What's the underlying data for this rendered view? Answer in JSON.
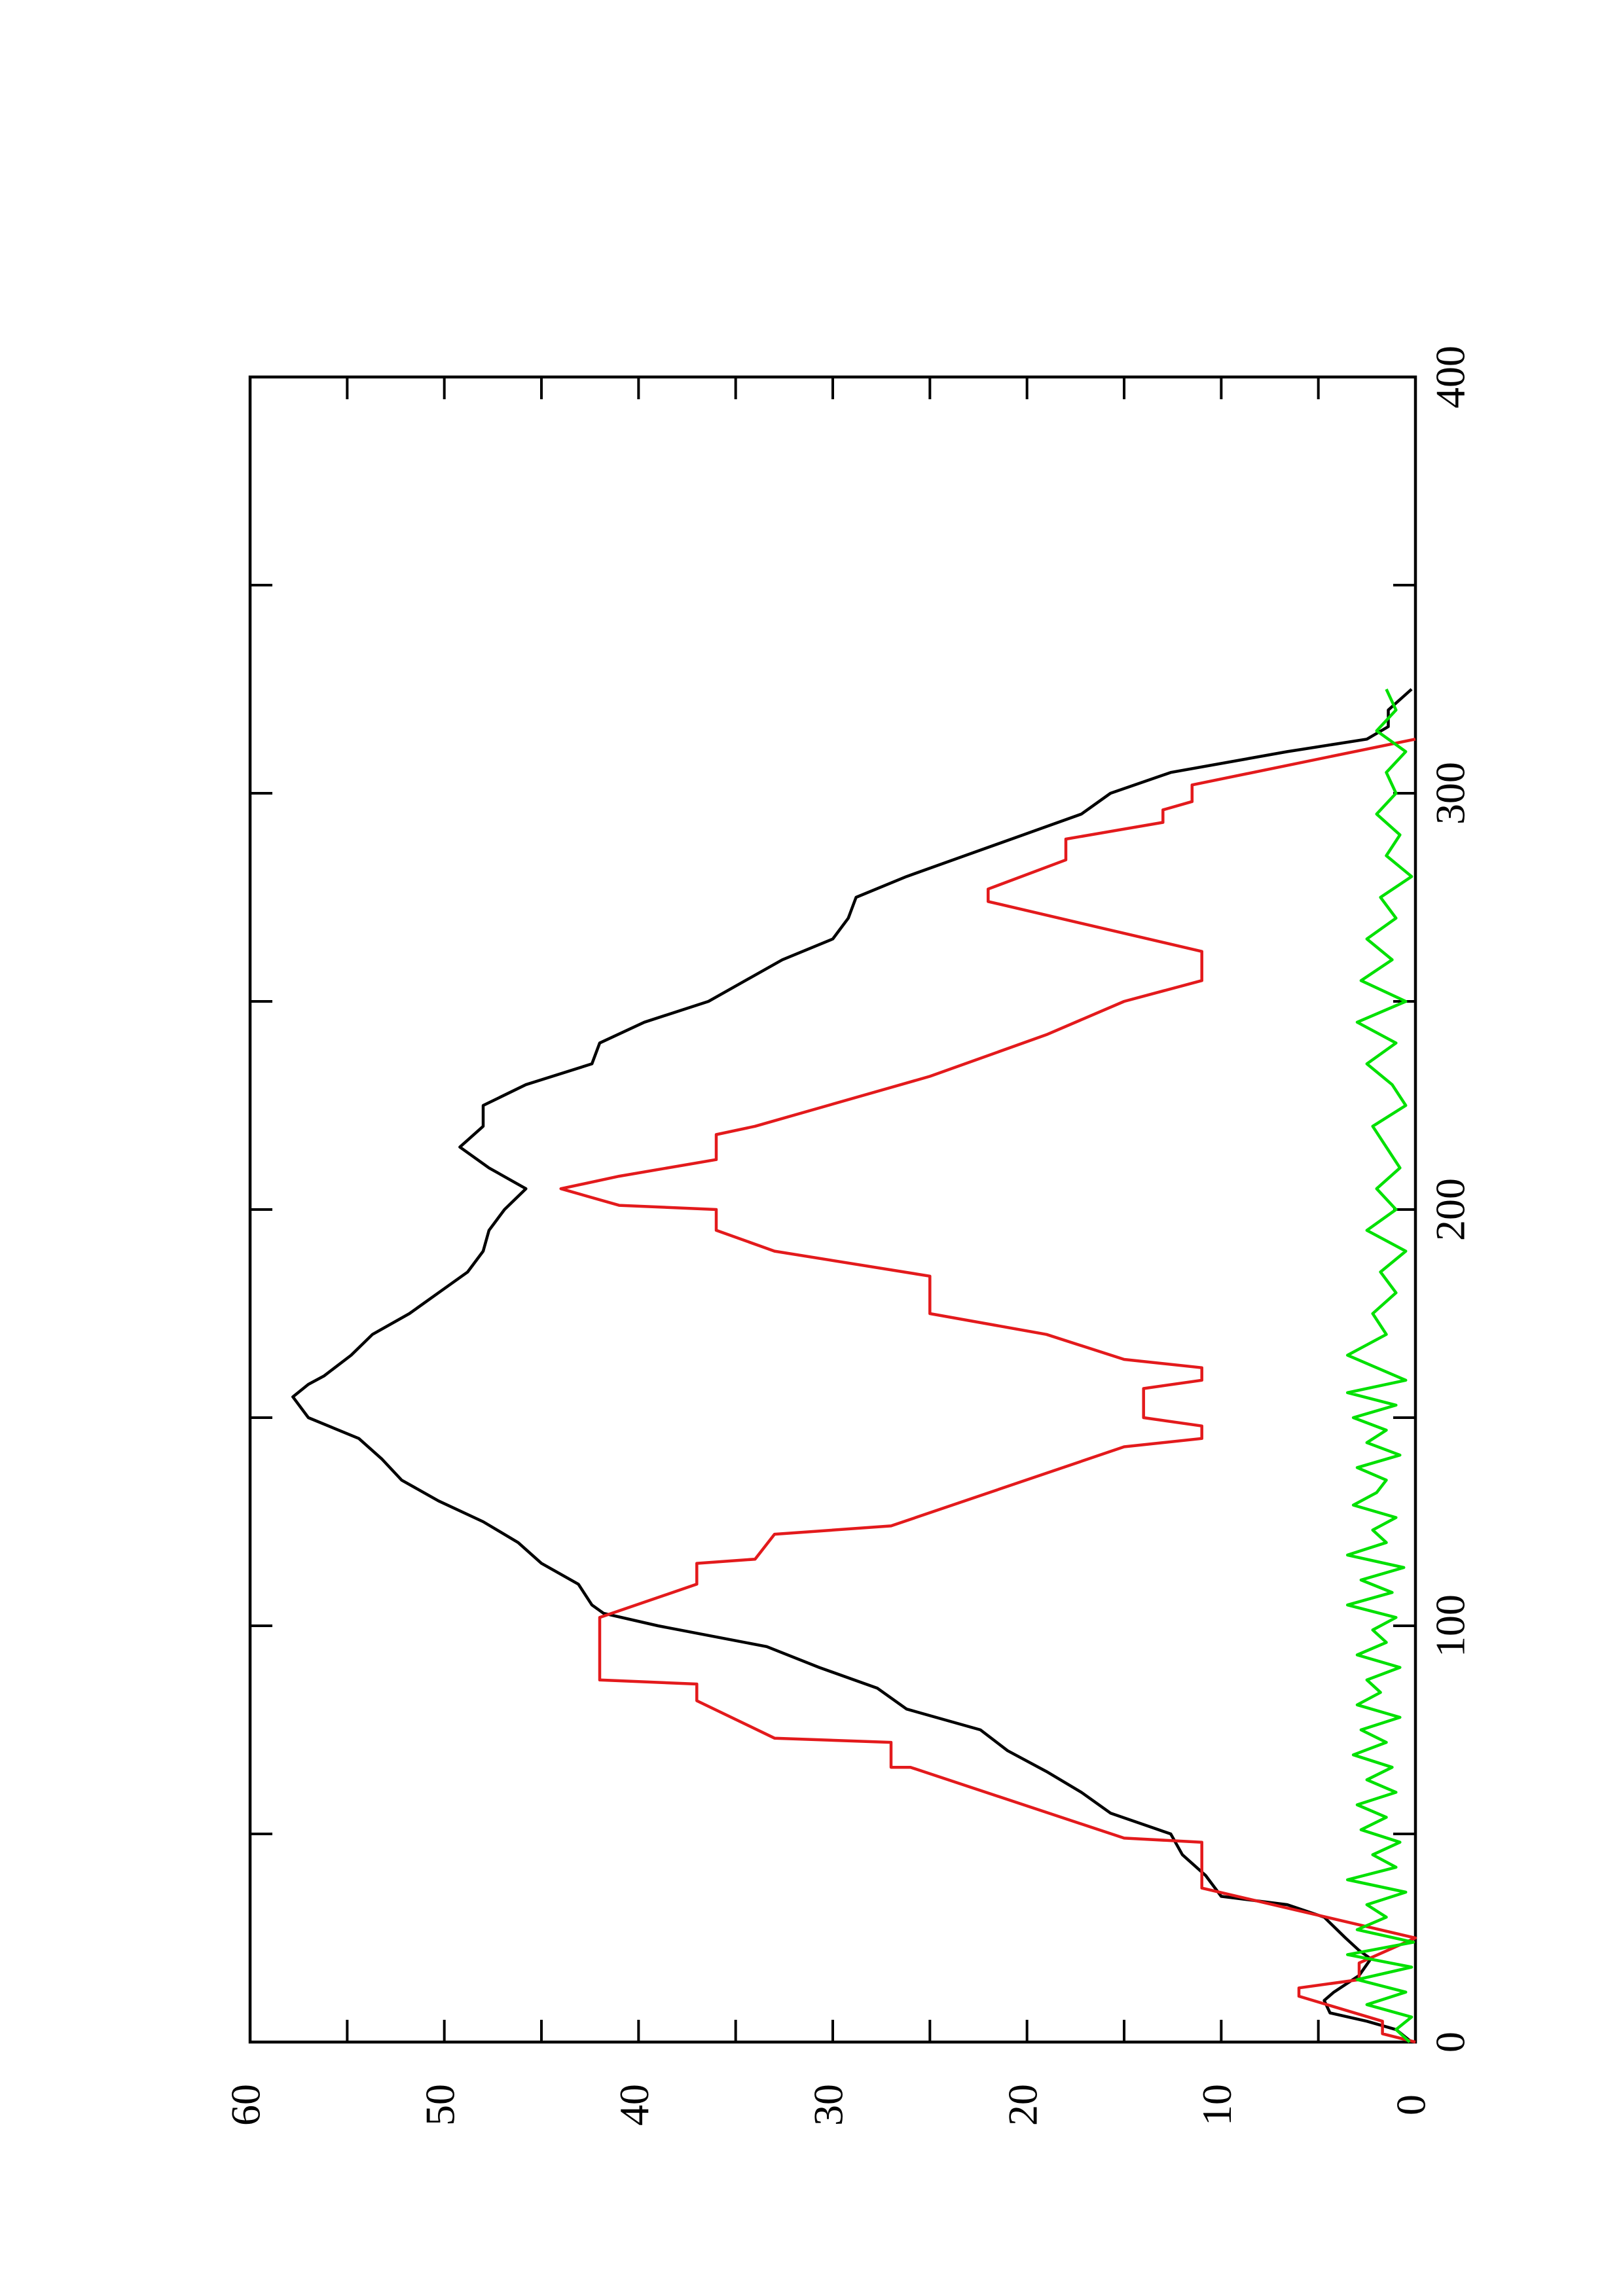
{
  "chart_data": {
    "type": "line",
    "rotated": true,
    "xlim": [
      0,
      400
    ],
    "xticks": [
      0,
      100,
      200,
      300,
      400
    ],
    "xminor": [
      50,
      150,
      250,
      350
    ],
    "ylim": [
      0,
      60
    ],
    "yticks": [
      0,
      10,
      20,
      30,
      40,
      50,
      60
    ],
    "yminor": [
      5,
      15,
      25,
      35,
      45,
      55
    ],
    "series": [
      {
        "color": "#000000",
        "x": [
          0,
          3,
          5,
          7,
          10,
          12,
          16,
          20,
          22,
          25,
          30,
          33,
          35,
          40,
          45,
          50,
          55,
          60,
          65,
          70,
          75,
          80,
          85,
          90,
          95,
          100,
          103,
          105,
          110,
          115,
          120,
          125,
          130,
          135,
          140,
          145,
          150,
          155,
          158,
          160,
          165,
          170,
          175,
          180,
          185,
          190,
          195,
          200,
          205,
          210,
          215,
          220,
          225,
          230,
          235,
          240,
          245,
          250,
          255,
          260,
          265,
          270,
          275,
          280,
          285,
          290,
          295,
          300,
          305,
          310,
          313,
          316,
          320,
          325
        ],
        "values": [
          0.2,
          1,
          2.5,
          4.4,
          4.7,
          4.2,
          2.9,
          2.3,
          2.9,
          3.6,
          4.7,
          6.6,
          10,
          10.8,
          12,
          12.6,
          15.7,
          17.2,
          19,
          21,
          22.4,
          26.2,
          27.7,
          30.7,
          33.4,
          39,
          41.8,
          42.4,
          43.1,
          45,
          46.2,
          48,
          50.3,
          52.2,
          53.2,
          54.4,
          57,
          57.8,
          57,
          56.2,
          54.8,
          53.7,
          51.8,
          50.3,
          48.8,
          48,
          47.7,
          46.9,
          45.8,
          47.7,
          49.2,
          48,
          48,
          45.8,
          42.4,
          42,
          39.7,
          36.4,
          34.5,
          32.6,
          30,
          29.2,
          28.8,
          26.2,
          23.2,
          20.2,
          17.2,
          15.7,
          12.6,
          6.6,
          2.5,
          1.4,
          1.4,
          0.2
        ]
      },
      {
        "color": "#e31a1c",
        "x": [
          0,
          2,
          5,
          11,
          13,
          15,
          19,
          25,
          37,
          48,
          49,
          66,
          66,
          72,
          73,
          82,
          86,
          87,
          102,
          110,
          115,
          116,
          122,
          124,
          143,
          145,
          148,
          150,
          157,
          159,
          162,
          164,
          170,
          175,
          184,
          190,
          195,
          200,
          201,
          205,
          208,
          212,
          218,
          220,
          232,
          242,
          250,
          255,
          262,
          274,
          277,
          284,
          289,
          293,
          296,
          298,
          302,
          313
        ],
        "values": [
          0,
          1.7,
          1.7,
          6,
          6,
          2.9,
          2.9,
          0,
          11,
          11,
          15,
          26,
          27,
          27,
          33,
          37,
          37,
          42,
          42,
          37,
          37,
          34,
          33,
          27,
          15,
          11,
          11,
          14,
          14,
          11,
          11,
          15,
          19,
          25,
          25,
          33,
          36,
          36,
          41,
          44,
          41,
          36,
          36,
          34,
          25,
          19,
          15,
          11,
          11,
          22,
          22,
          18,
          18,
          13,
          13,
          11.5,
          11.5,
          0
        ]
      },
      {
        "color": "#00e000",
        "x": [
          0,
          3,
          6,
          9,
          12,
          15,
          18,
          21,
          24,
          27,
          30,
          33,
          36,
          39,
          42,
          45,
          48,
          51,
          54,
          57,
          60,
          63,
          66,
          69,
          72,
          75,
          78,
          81,
          84,
          87,
          90,
          93,
          96,
          99,
          102,
          105,
          108,
          111,
          114,
          117,
          120,
          123,
          126,
          129,
          132,
          135,
          138,
          141,
          144,
          147,
          150,
          153,
          156,
          159,
          162,
          165,
          170,
          175,
          180,
          185,
          190,
          195,
          200,
          205,
          210,
          215,
          220,
          225,
          230,
          235,
          240,
          245,
          250,
          255,
          260,
          265,
          270,
          275,
          280,
          285,
          290,
          295,
          300,
          305,
          310,
          315,
          320,
          325
        ],
        "values": [
          0.3,
          1,
          0.2,
          2.5,
          0.5,
          3,
          0.2,
          3.5,
          0.1,
          3,
          1.5,
          2.5,
          0.5,
          3.5,
          1,
          2.2,
          0.8,
          2.8,
          1.5,
          3,
          1,
          2.5,
          1.2,
          3.2,
          1.5,
          2.8,
          0.8,
          3,
          1.8,
          2.5,
          0.8,
          3,
          1.5,
          2.2,
          1,
          3.5,
          1.2,
          2.8,
          0.6,
          3.5,
          1.5,
          2.2,
          1,
          3.2,
          2,
          1.5,
          3,
          0.8,
          2.5,
          1.5,
          3.2,
          1,
          3.5,
          0.5,
          2,
          3.5,
          1.5,
          2.2,
          1,
          1.8,
          0.5,
          2.5,
          1,
          2,
          0.8,
          1.5,
          2.2,
          0.5,
          1.2,
          2.5,
          1,
          3,
          0.5,
          2.8,
          1.2,
          2.5,
          1,
          1.8,
          0.2,
          1.5,
          0.8,
          2,
          1,
          1.5,
          0.5,
          2,
          1,
          1.5
        ]
      }
    ]
  }
}
